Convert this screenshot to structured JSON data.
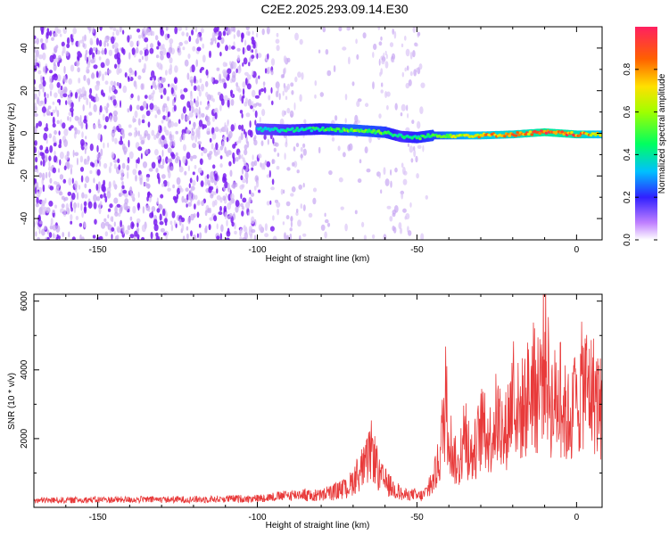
{
  "title": "C2E2.2025.293.09.14.E30",
  "colors": {
    "line": "#e83a3a",
    "track": "#00c060"
  },
  "chart_data": [
    {
      "type": "heatmap",
      "title": "C2E2.2025.293.09.14.E30",
      "xlabel": "Height of straight line (km)",
      "ylabel": "Frequency (Hz)",
      "xlim": [
        -170,
        8
      ],
      "ylim": [
        -50,
        50
      ],
      "x_ticks": [
        -150,
        -100,
        -50,
        0
      ],
      "y_ticks": [
        -40,
        -20,
        0,
        20,
        40
      ],
      "colorbar": {
        "label": "Normalized spectral amplitude",
        "range": [
          0,
          1
        ],
        "ticks": [
          "0.0",
          "0.2",
          "0.4",
          "0.6",
          "0.8"
        ],
        "colormap": "rainbow"
      },
      "track": {
        "description_x": [
          -100,
          -90,
          -80,
          -70,
          -60,
          -55,
          -50,
          -45,
          -40,
          -30,
          -20,
          -10,
          0,
          8
        ],
        "frequency": [
          2,
          1.5,
          2,
          1.5,
          0.5,
          -1.5,
          -2,
          -1,
          -1,
          -1,
          -0.5,
          0.5,
          -0.5,
          -0.5
        ],
        "amplitude": [
          0.35,
          0.4,
          0.45,
          0.55,
          0.5,
          0.4,
          0.45,
          0.5,
          0.6,
          0.75,
          0.8,
          0.9,
          0.85,
          0.7
        ]
      },
      "noise_x_range": [
        -170,
        -45
      ],
      "grid": false
    },
    {
      "type": "line",
      "xlabel": "Height of straight line (km)",
      "ylabel": "SNR (10 * v/v)",
      "xlim": [
        -170,
        8
      ],
      "ylim": [
        0,
        6200
      ],
      "x_ticks": [
        -150,
        -100,
        -50,
        0
      ],
      "y_ticks": [
        2000,
        4000,
        6000
      ],
      "series": [
        {
          "x": [
            -170,
            -150,
            -120,
            -100,
            -90,
            -80,
            -72,
            -66,
            -64,
            -62,
            -58,
            -53,
            -48,
            -45,
            -43,
            -41,
            -39,
            -37,
            -35,
            -33,
            -30,
            -27,
            -25,
            -23,
            -20,
            -18,
            -16,
            -14,
            -12,
            -10,
            -8,
            -5,
            -3,
            0,
            2,
            4,
            6,
            8
          ],
          "y": [
            200,
            220,
            230,
            260,
            350,
            450,
            700,
            1600,
            2200,
            1200,
            750,
            350,
            450,
            900,
            1800,
            3900,
            2100,
            1400,
            2700,
            1700,
            2900,
            2600,
            3400,
            2400,
            4100,
            3500,
            3900,
            4600,
            4100,
            5900,
            3900,
            4000,
            3300,
            3700,
            4700,
            4400,
            4200,
            3600
          ]
        }
      ],
      "grid": false
    }
  ]
}
